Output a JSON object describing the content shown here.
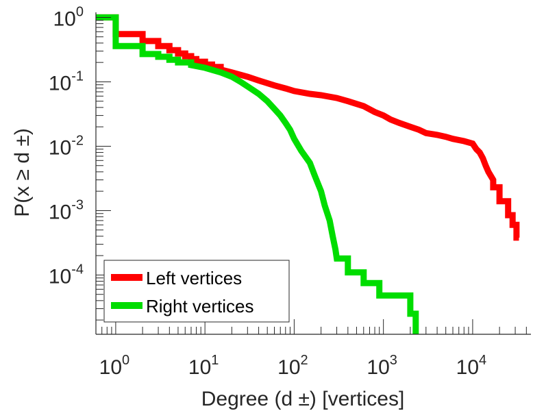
{
  "chart_data": {
    "type": "line",
    "subtype": "ccdf-step",
    "xscale": "log",
    "yscale": "log",
    "xlabel": "Degree (d ±) [vertices]",
    "ylabel": "P(x ≥ d ±)",
    "xlim": [
      0.6,
      45000
    ],
    "ylim": [
      1.2e-05,
      1.2
    ],
    "x_ticks": [
      {
        "value": 1,
        "base": "10",
        "exp": "0"
      },
      {
        "value": 10,
        "base": "10",
        "exp": "1"
      },
      {
        "value": 100,
        "base": "10",
        "exp": "2"
      },
      {
        "value": 1000,
        "base": "10",
        "exp": "3"
      },
      {
        "value": 10000,
        "base": "10",
        "exp": "4"
      }
    ],
    "y_ticks": [
      {
        "value": 1,
        "base": "10",
        "exp": "0"
      },
      {
        "value": 0.1,
        "base": "10",
        "exp": "-1"
      },
      {
        "value": 0.01,
        "base": "10",
        "exp": "-2"
      },
      {
        "value": 0.001,
        "base": "10",
        "exp": "-3"
      },
      {
        "value": 0.0001,
        "base": "10",
        "exp": "-4"
      }
    ],
    "legend_position": "bottom-left",
    "series": [
      {
        "name": "Left vertices",
        "color": "#ff0000",
        "points": [
          [
            0.6,
            1.0
          ],
          [
            1,
            1.0
          ],
          [
            1,
            0.55
          ],
          [
            2,
            0.55
          ],
          [
            2,
            0.43
          ],
          [
            3,
            0.43
          ],
          [
            3,
            0.36
          ],
          [
            4,
            0.36
          ],
          [
            4,
            0.31
          ],
          [
            5,
            0.31
          ],
          [
            5,
            0.275
          ],
          [
            6,
            0.275
          ],
          [
            6,
            0.25
          ],
          [
            7,
            0.25
          ],
          [
            7,
            0.225
          ],
          [
            8,
            0.225
          ],
          [
            8,
            0.205
          ],
          [
            10,
            0.205
          ],
          [
            10,
            0.185
          ],
          [
            12,
            0.185
          ],
          [
            12,
            0.17
          ],
          [
            15,
            0.17
          ],
          [
            15,
            0.155
          ],
          [
            20,
            0.14
          ],
          [
            30,
            0.12
          ],
          [
            40,
            0.105
          ],
          [
            60,
            0.088
          ],
          [
            80,
            0.079
          ],
          [
            100,
            0.072
          ],
          [
            150,
            0.065
          ],
          [
            200,
            0.062
          ],
          [
            300,
            0.056
          ],
          [
            400,
            0.05
          ],
          [
            600,
            0.042
          ],
          [
            800,
            0.034
          ],
          [
            1000,
            0.03
          ],
          [
            1200,
            0.026
          ],
          [
            1500,
            0.023
          ],
          [
            2000,
            0.02
          ],
          [
            2500,
            0.018
          ],
          [
            3000,
            0.016
          ],
          [
            4000,
            0.015
          ],
          [
            5000,
            0.014
          ],
          [
            6000,
            0.013
          ],
          [
            8000,
            0.012
          ],
          [
            10000,
            0.011
          ],
          [
            11000,
            0.009
          ],
          [
            12000,
            0.008
          ],
          [
            13000,
            0.0065
          ],
          [
            14000,
            0.005
          ],
          [
            15000,
            0.004
          ],
          [
            17000,
            0.003
          ],
          [
            17000,
            0.0023
          ],
          [
            20000,
            0.0023
          ],
          [
            20000,
            0.0014
          ],
          [
            25000,
            0.0014
          ],
          [
            25000,
            0.00085
          ],
          [
            28000,
            0.00085
          ],
          [
            28000,
            0.0006
          ],
          [
            31000,
            0.0006
          ],
          [
            31000,
            0.00038
          ],
          [
            33000,
            0.00038
          ]
        ]
      },
      {
        "name": "Right vertices",
        "color": "#00dd00",
        "points": [
          [
            0.6,
            1.0
          ],
          [
            1,
            1.0
          ],
          [
            1,
            0.36
          ],
          [
            2,
            0.36
          ],
          [
            2,
            0.27
          ],
          [
            3,
            0.27
          ],
          [
            3,
            0.245
          ],
          [
            4,
            0.245
          ],
          [
            4,
            0.22
          ],
          [
            5,
            0.22
          ],
          [
            5,
            0.2
          ],
          [
            7,
            0.2
          ],
          [
            7,
            0.182
          ],
          [
            10,
            0.165
          ],
          [
            15,
            0.14
          ],
          [
            20,
            0.12
          ],
          [
            25,
            0.1
          ],
          [
            30,
            0.085
          ],
          [
            40,
            0.065
          ],
          [
            50,
            0.05
          ],
          [
            60,
            0.038
          ],
          [
            70,
            0.03
          ],
          [
            80,
            0.023
          ],
          [
            90,
            0.018
          ],
          [
            100,
            0.013
          ],
          [
            120,
            0.0085
          ],
          [
            150,
            0.0055
          ],
          [
            170,
            0.0035
          ],
          [
            200,
            0.002
          ],
          [
            220,
            0.0012
          ],
          [
            250,
            0.0007
          ],
          [
            270,
            0.0004
          ],
          [
            290,
            0.00025
          ],
          [
            300,
            0.00018
          ],
          [
            400,
            0.00018
          ],
          [
            400,
            0.00011
          ],
          [
            600,
            0.00011
          ],
          [
            600,
            7.5e-05
          ],
          [
            900,
            7.5e-05
          ],
          [
            900,
            4.8e-05
          ],
          [
            2000,
            4.8e-05
          ],
          [
            2000,
            2.5e-05
          ],
          [
            2300,
            2.5e-05
          ],
          [
            2300,
            1.2e-05
          ]
        ]
      }
    ]
  }
}
